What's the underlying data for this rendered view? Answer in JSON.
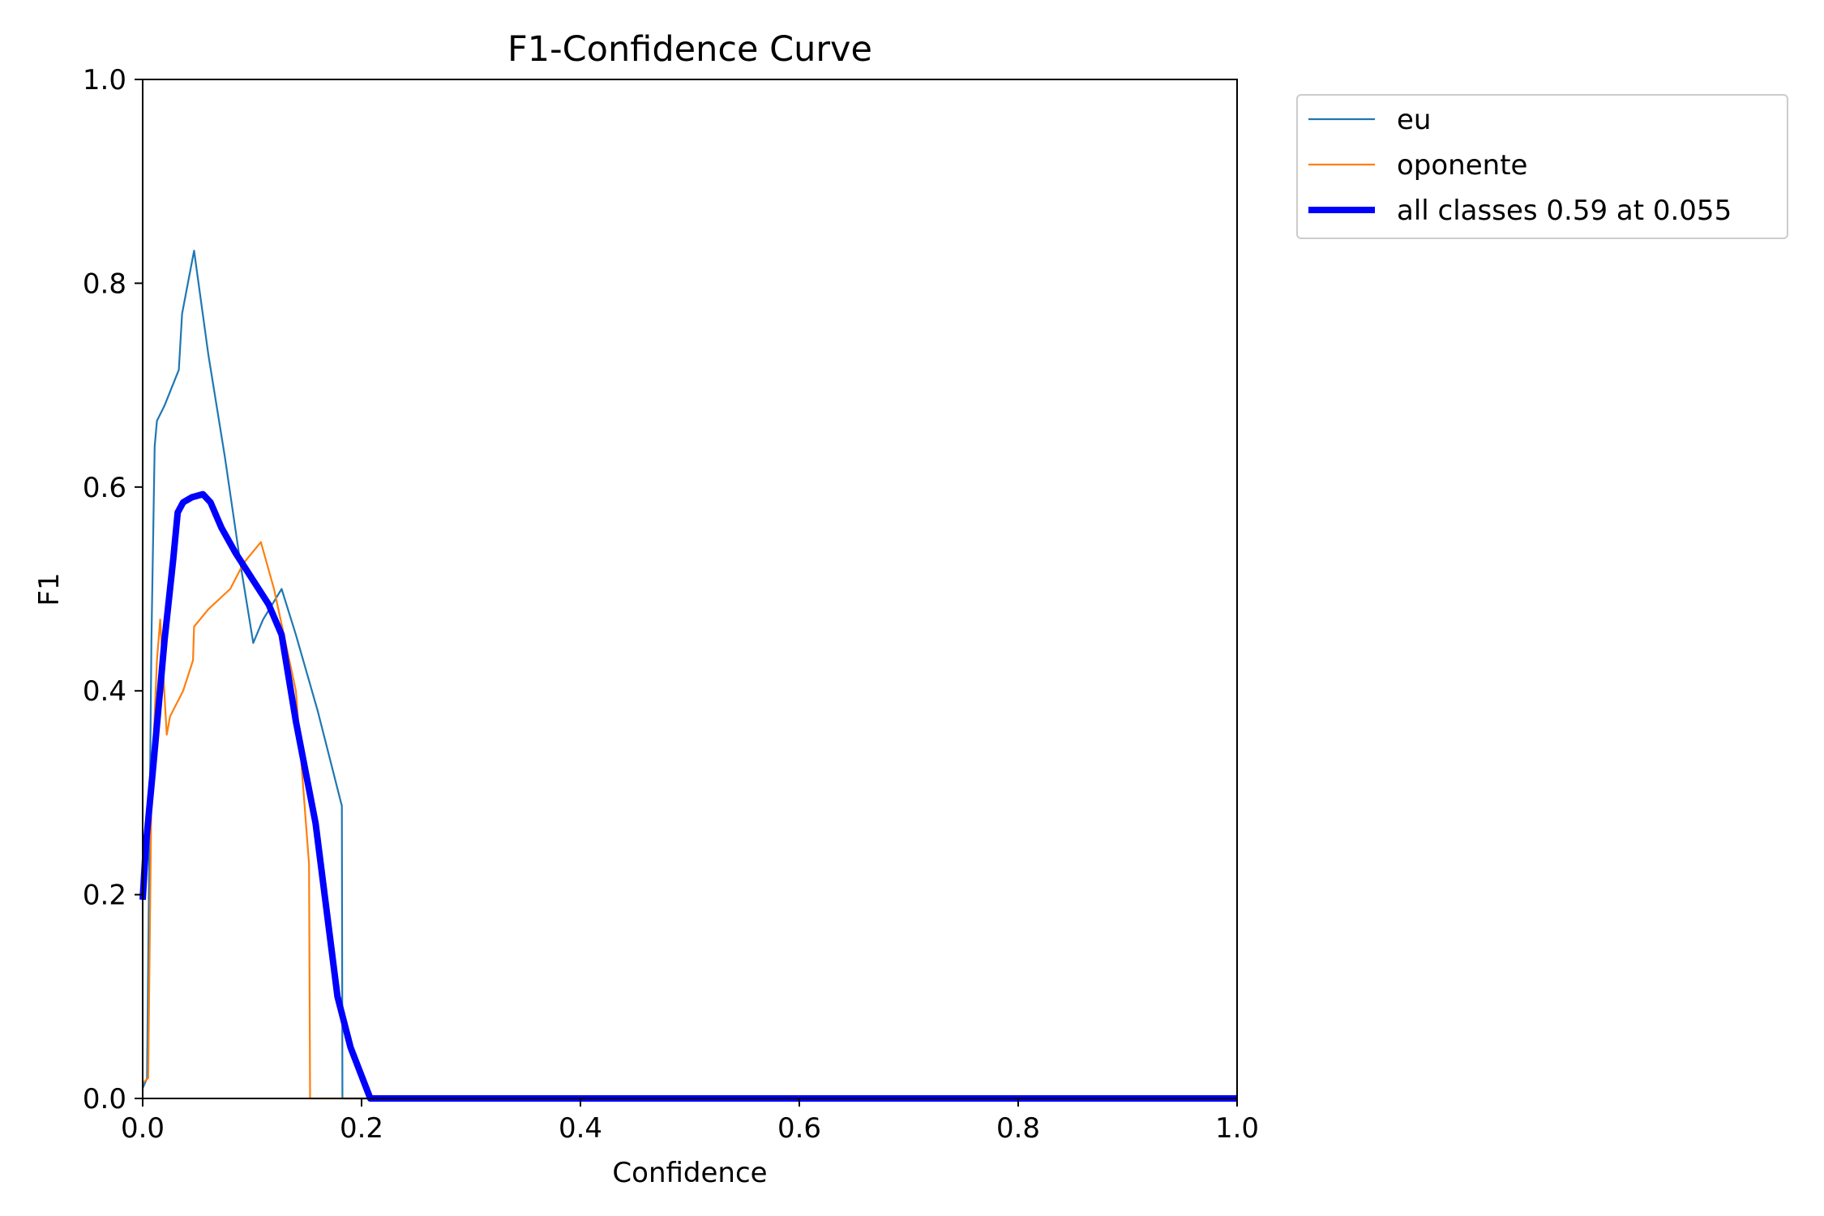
{
  "chart_data": {
    "type": "line",
    "title": "F1-Confidence Curve",
    "xlabel": "Confidence",
    "ylabel": "F1",
    "xlim": [
      0.0,
      1.0
    ],
    "ylim": [
      0.0,
      1.0
    ],
    "x_ticks": [
      "0.0",
      "0.2",
      "0.4",
      "0.6",
      "0.8",
      "1.0"
    ],
    "y_ticks": [
      "0.0",
      "0.2",
      "0.4",
      "0.6",
      "0.8",
      "1.0"
    ],
    "grid": false,
    "legend_position": "outside-top-right",
    "series": [
      {
        "name": "eu",
        "color": "#1f77b4",
        "line_width": "thin",
        "points": [
          [
            0.0,
            0.01
          ],
          [
            0.004,
            0.02
          ],
          [
            0.008,
            0.45
          ],
          [
            0.011,
            0.64
          ],
          [
            0.013,
            0.665
          ],
          [
            0.02,
            0.68
          ],
          [
            0.033,
            0.715
          ],
          [
            0.036,
            0.77
          ],
          [
            0.047,
            0.832
          ],
          [
            0.06,
            0.73
          ],
          [
            0.075,
            0.63
          ],
          [
            0.09,
            0.52
          ],
          [
            0.101,
            0.447
          ],
          [
            0.11,
            0.47
          ],
          [
            0.127,
            0.5
          ],
          [
            0.14,
            0.455
          ],
          [
            0.16,
            0.38
          ],
          [
            0.182,
            0.287
          ],
          [
            0.1825,
            0.0
          ],
          [
            1.0,
            0.0
          ]
        ]
      },
      {
        "name": "oponente",
        "color": "#ff7f0e",
        "line_width": "thin",
        "points": [
          [
            0.0,
            0.015
          ],
          [
            0.005,
            0.02
          ],
          [
            0.008,
            0.3
          ],
          [
            0.013,
            0.43
          ],
          [
            0.016,
            0.47
          ],
          [
            0.022,
            0.357
          ],
          [
            0.025,
            0.375
          ],
          [
            0.037,
            0.4
          ],
          [
            0.046,
            0.43
          ],
          [
            0.047,
            0.463
          ],
          [
            0.06,
            0.48
          ],
          [
            0.08,
            0.5
          ],
          [
            0.092,
            0.525
          ],
          [
            0.108,
            0.546
          ],
          [
            0.12,
            0.5
          ],
          [
            0.14,
            0.4
          ],
          [
            0.152,
            0.23
          ],
          [
            0.153,
            0.0
          ],
          [
            1.0,
            0.0
          ]
        ]
      },
      {
        "name": "all classes 0.59 at 0.055",
        "color": "#0000ff",
        "line_width": "thick",
        "points": [
          [
            0.0,
            0.195
          ],
          [
            0.003,
            0.25
          ],
          [
            0.01,
            0.33
          ],
          [
            0.02,
            0.45
          ],
          [
            0.028,
            0.53
          ],
          [
            0.032,
            0.575
          ],
          [
            0.037,
            0.585
          ],
          [
            0.045,
            0.59
          ],
          [
            0.055,
            0.593
          ],
          [
            0.062,
            0.585
          ],
          [
            0.072,
            0.56
          ],
          [
            0.085,
            0.535
          ],
          [
            0.1,
            0.51
          ],
          [
            0.115,
            0.485
          ],
          [
            0.127,
            0.455
          ],
          [
            0.14,
            0.37
          ],
          [
            0.158,
            0.27
          ],
          [
            0.178,
            0.1
          ],
          [
            0.19,
            0.05
          ],
          [
            0.208,
            0.0
          ],
          [
            1.0,
            0.0
          ]
        ]
      }
    ]
  }
}
